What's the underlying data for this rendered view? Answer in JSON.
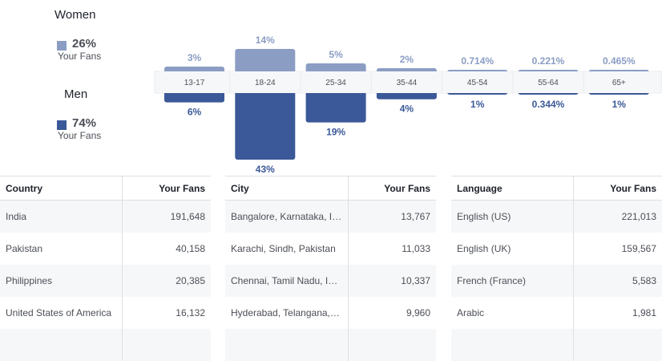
{
  "legend": {
    "women": {
      "title": "Women",
      "percent": "26%",
      "sub": "Your Fans",
      "color": "#8b9dc3"
    },
    "men": {
      "title": "Men",
      "percent": "74%",
      "sub": "Your Fans",
      "color": "#3b5998"
    }
  },
  "chart_data": {
    "type": "bar",
    "categories": [
      "13-17",
      "18-24",
      "25-34",
      "35-44",
      "45-54",
      "55-64",
      "65+"
    ],
    "series": [
      {
        "name": "Women",
        "values": [
          3,
          14,
          5,
          2,
          0.714,
          0.221,
          0.465
        ],
        "labels": [
          "3%",
          "14%",
          "5%",
          "2%",
          "0.714%",
          "0.221%",
          "0.465%"
        ],
        "color": "#8b9dc3"
      },
      {
        "name": "Men",
        "values": [
          6,
          43,
          19,
          4,
          1,
          0.344,
          1
        ],
        "labels": [
          "6%",
          "43%",
          "19%",
          "4%",
          "1%",
          "0.344%",
          "1%"
        ],
        "color": "#3b5998"
      }
    ],
    "title": "",
    "xlabel": "",
    "ylabel": ""
  },
  "tables": [
    {
      "headers": [
        "Country",
        "Your Fans"
      ],
      "rows": [
        [
          "India",
          "191,648"
        ],
        [
          "Pakistan",
          "40,158"
        ],
        [
          "Philippines",
          "20,385"
        ],
        [
          "United States of America",
          "16,132"
        ]
      ]
    },
    {
      "headers": [
        "City",
        "Your Fans"
      ],
      "rows": [
        [
          "Bangalore, Karnataka, India",
          "13,767"
        ],
        [
          "Karachi, Sindh, Pakistan",
          "11,033"
        ],
        [
          "Chennai, Tamil Nadu, India",
          "10,337"
        ],
        [
          "Hyderabad, Telangana, India",
          "9,960"
        ]
      ]
    },
    {
      "headers": [
        "Language",
        "Your Fans"
      ],
      "rows": [
        [
          "English (US)",
          "221,013"
        ],
        [
          "English (UK)",
          "159,567"
        ],
        [
          "French (France)",
          "5,583"
        ],
        [
          "Arabic",
          "1,981"
        ]
      ]
    }
  ]
}
